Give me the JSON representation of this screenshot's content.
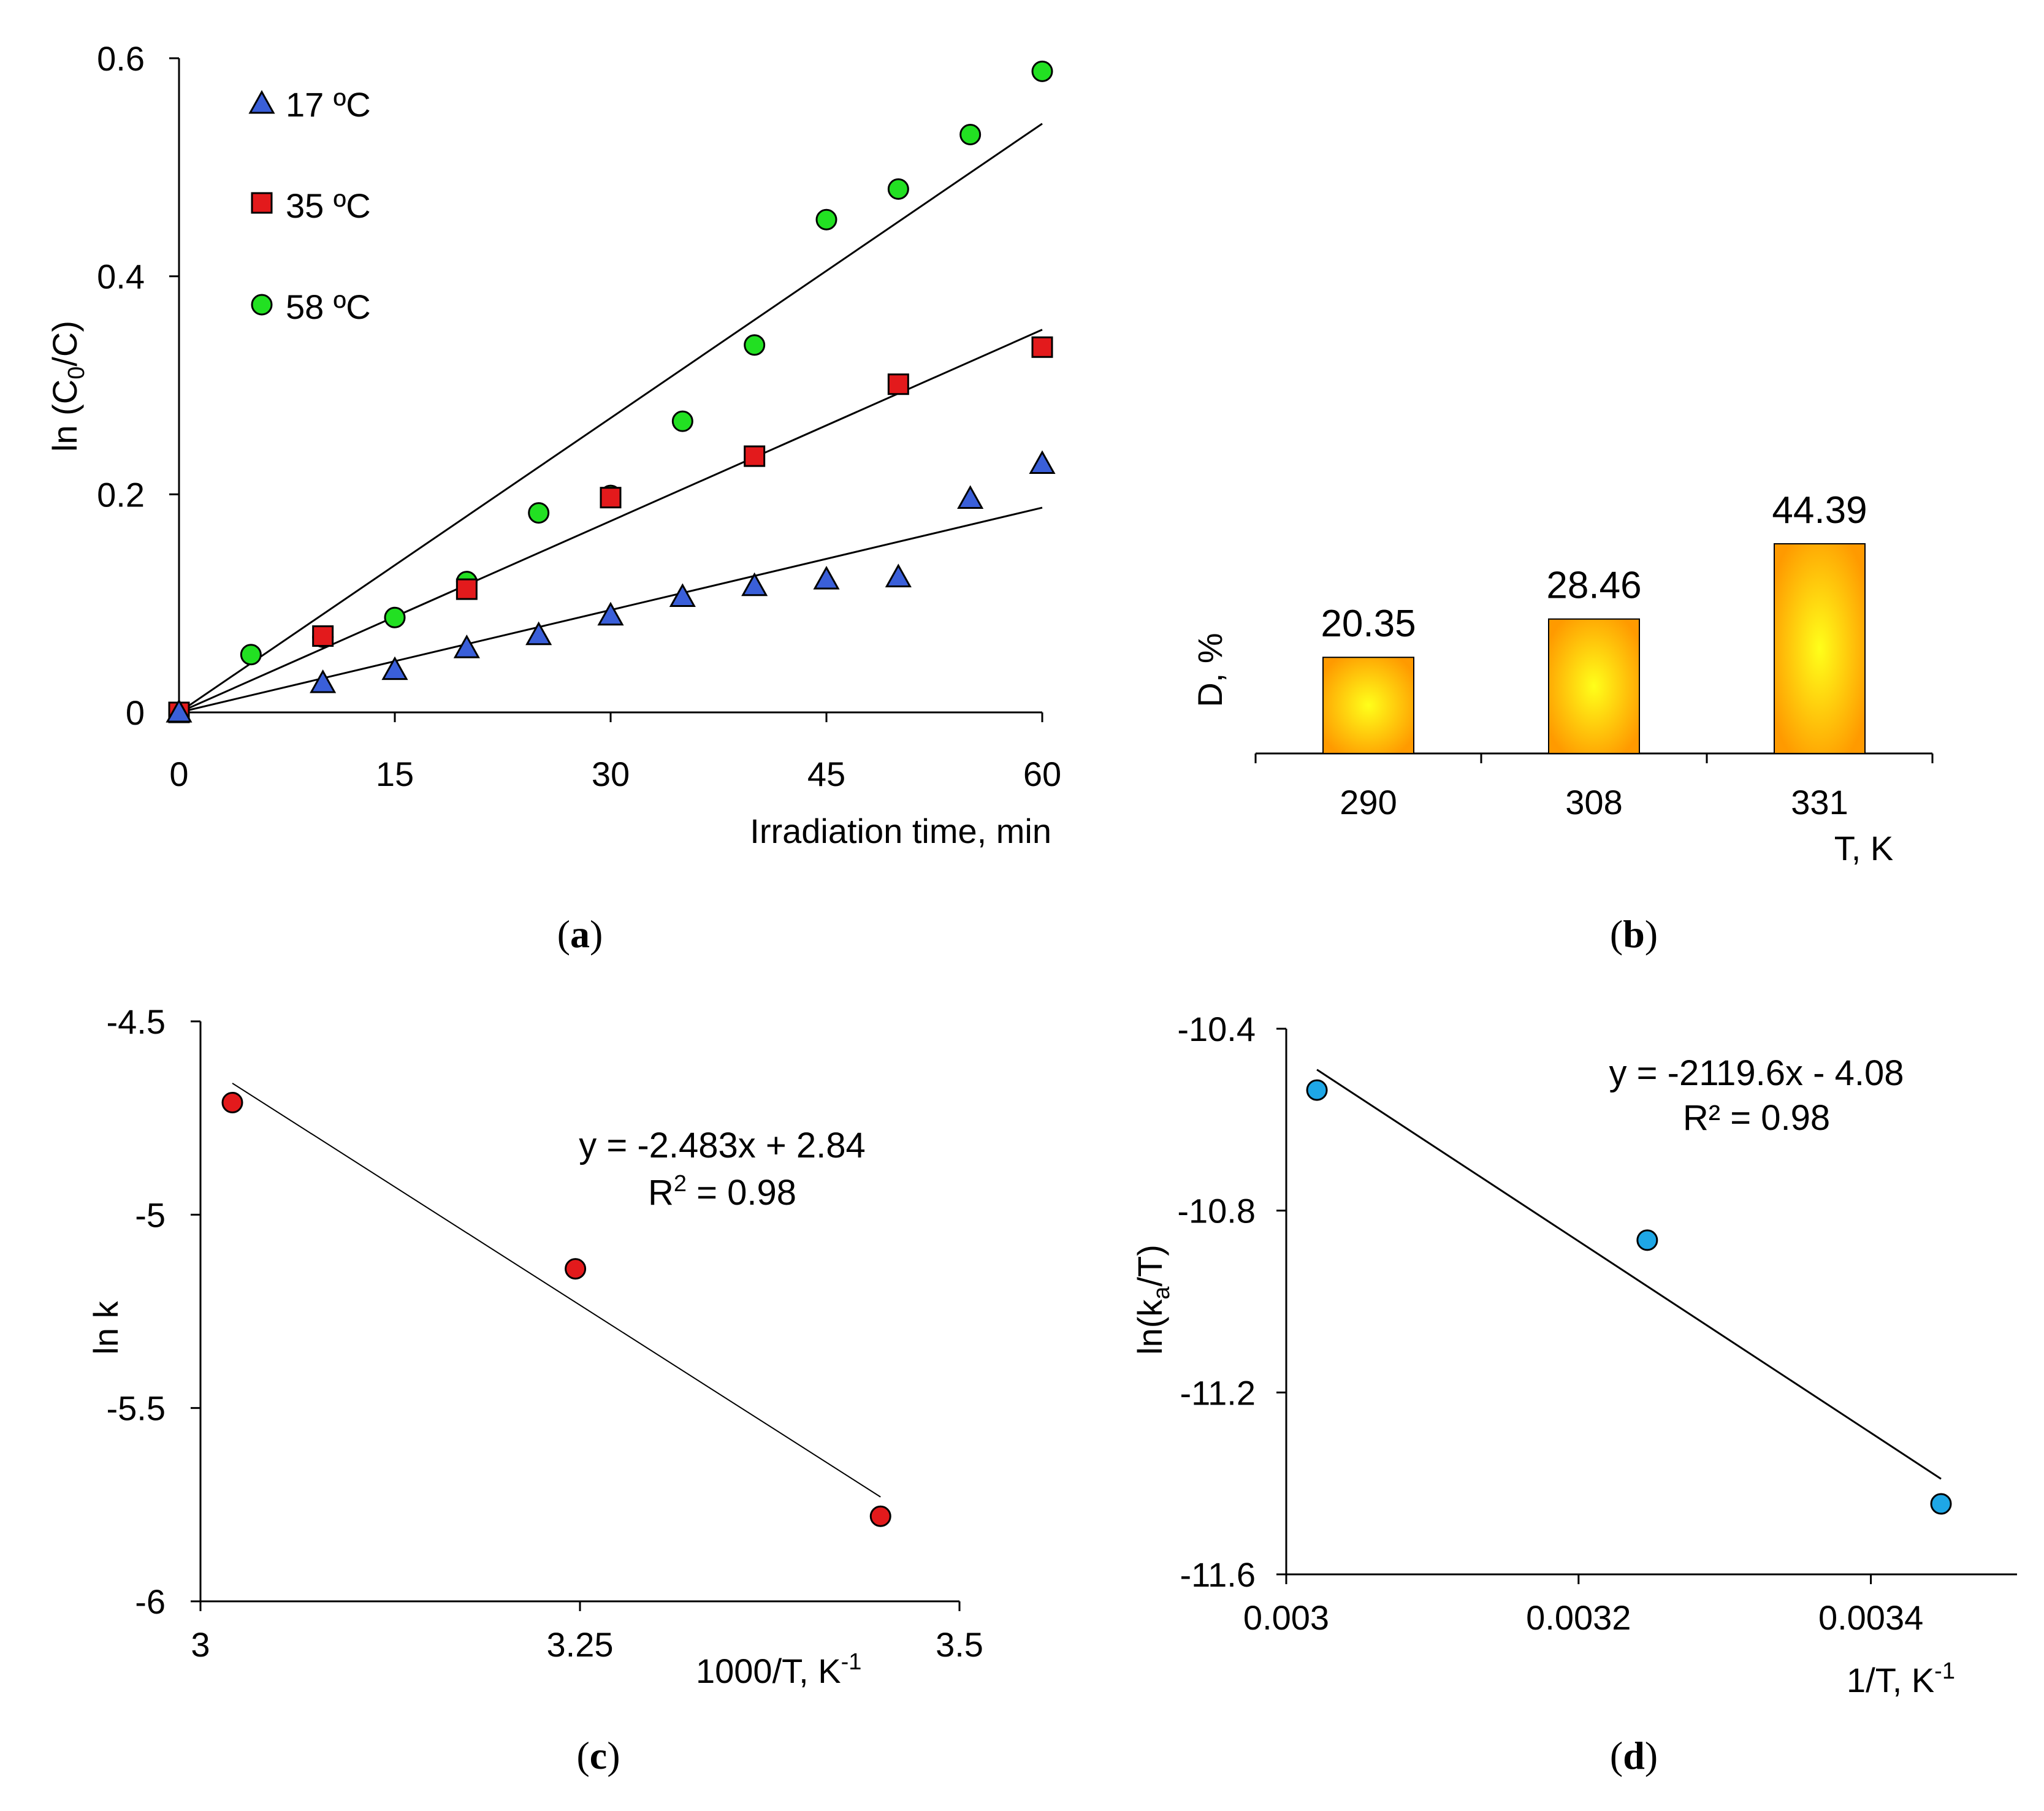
{
  "chart_data": [
    {
      "id": "a",
      "type": "scatter",
      "caption": "(a)",
      "caption_letter": "a",
      "xlabel": "Irradiation time, min",
      "ylabel": "ln (C0/C)",
      "ylabel_main": "ln (C",
      "ylabel_sub": "0",
      "ylabel_end": "/C)",
      "xlim": [
        0,
        60
      ],
      "ylim": [
        0,
        0.6
      ],
      "xticks": [
        0,
        15,
        30,
        45,
        60
      ],
      "xtick_labels": [
        "0",
        "15",
        "30",
        "45",
        "60"
      ],
      "yticks": [
        0,
        0.2,
        0.4,
        0.6
      ],
      "ytick_labels": [
        "0",
        "0.2",
        "0.4",
        "0.6"
      ],
      "legend_position": "top-left",
      "series": [
        {
          "name": "17 ºC",
          "marker": "triangle",
          "color": "#3a5fd9",
          "x": [
            0,
            10,
            15,
            20,
            25,
            30,
            35,
            40,
            45,
            50,
            55,
            60
          ],
          "y": [
            0,
            0.027,
            0.039,
            0.059,
            0.071,
            0.089,
            0.106,
            0.116,
            0.122,
            0.124,
            0.196,
            0.228
          ],
          "fit_slope": 0.00313
        },
        {
          "name": "35 ºC",
          "marker": "square",
          "color": "#e31a1c",
          "x": [
            0,
            10,
            20,
            30,
            40,
            50,
            60
          ],
          "y": [
            0,
            0.07,
            0.113,
            0.197,
            0.235,
            0.301,
            0.335
          ],
          "fit_slope": 0.00585
        },
        {
          "name": "58 ºC",
          "marker": "circle",
          "color": "#22e022",
          "x": [
            0,
            5,
            10,
            15,
            20,
            25,
            30,
            35,
            40,
            45,
            50,
            55,
            60
          ],
          "y": [
            0,
            0.053,
            0.069,
            0.087,
            0.12,
            0.183,
            0.199,
            0.267,
            0.337,
            0.452,
            0.48,
            0.53,
            0.588
          ],
          "fit_slope": 0.009
        }
      ]
    },
    {
      "id": "b",
      "type": "bar",
      "caption": "(b)",
      "caption_letter": "b",
      "xlabel": "T, K",
      "ylabel": "D, %",
      "categories": [
        "290",
        "308",
        "331"
      ],
      "values": [
        20.35,
        28.46,
        44.39
      ],
      "value_labels": [
        "20.35",
        "28.46",
        "44.39"
      ],
      "ylim": [
        0,
        44.39
      ],
      "bar_color_center": "#ffff1a",
      "bar_color_edge": "#ff9a00"
    },
    {
      "id": "c",
      "type": "scatter",
      "caption": "(c)",
      "caption_letter": "c",
      "xlabel": "1000/T, K-1",
      "xlabel_main": "1000/T, K",
      "xlabel_sup": "-1",
      "ylabel": "ln k",
      "xlim": [
        3,
        3.5
      ],
      "ylim": [
        -6,
        -4.5
      ],
      "xticks": [
        3,
        3.25,
        3.5
      ],
      "xtick_labels": [
        "3",
        "3.25",
        "3.5"
      ],
      "yticks": [
        -4.5,
        -5,
        -5.5,
        -6
      ],
      "ytick_labels": [
        "-4.5",
        "-5",
        "-5.5",
        "-6"
      ],
      "series": [
        {
          "name": "ln k",
          "marker": "circle",
          "color": "#e31a1c",
          "x": [
            3.021,
            3.247,
            3.448
          ],
          "y": [
            -4.71,
            -5.14,
            -5.78
          ]
        }
      ],
      "fit": {
        "x": [
          3.021,
          3.448
        ],
        "y": [
          -4.66,
          -5.73
        ]
      },
      "equation": "y = -2.483x + 2.84",
      "r2_main": "R",
      "r2_sup": "2",
      "r2_end": " = 0.98"
    },
    {
      "id": "d",
      "type": "scatter",
      "caption": "(d)",
      "caption_letter": "d",
      "xlabel": "1/T, K-1",
      "xlabel_main": "1/T, K",
      "xlabel_sup": "-1",
      "ylabel": "ln(ka/T)",
      "ylabel_main": "ln(k",
      "ylabel_sub": "a",
      "ylabel_end": "/T)",
      "xlim": [
        0.003,
        0.0035
      ],
      "ylim": [
        -11.6,
        -10.4
      ],
      "xticks": [
        0.003,
        0.0032,
        0.0034
      ],
      "xtick_labels": [
        "0.003",
        "0.0032",
        "0.0034"
      ],
      "yticks": [
        -10.4,
        -10.8,
        -11.2,
        -11.6
      ],
      "ytick_labels": [
        "-10.4",
        "-10.8",
        "-11.2",
        "-11.6"
      ],
      "series": [
        {
          "name": "ln(ka/T)",
          "marker": "circle",
          "color": "#1ea7e6",
          "x": [
            0.003021,
            0.003247,
            0.003448
          ],
          "y": [
            -10.535,
            -10.865,
            -11.445
          ]
        }
      ],
      "fit": {
        "x": [
          0.003021,
          0.003448
        ],
        "y": [
          -10.49,
          -11.39
        ]
      },
      "equation": "y = -2119.6x - 4.08",
      "r2": "R² = 0.98"
    }
  ]
}
